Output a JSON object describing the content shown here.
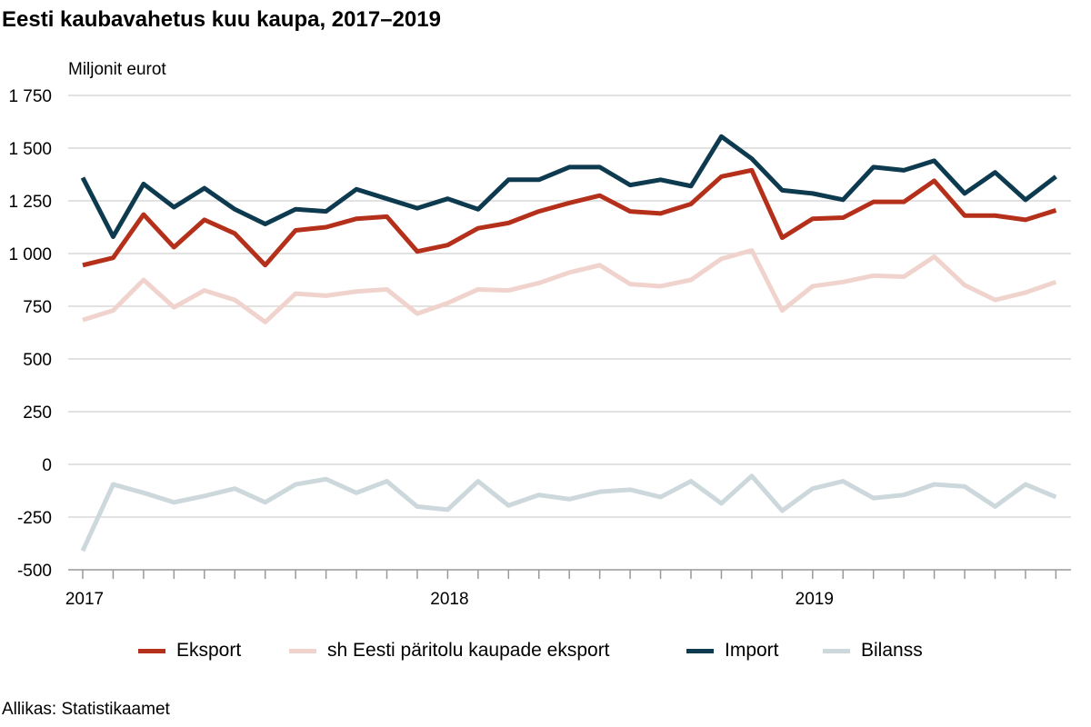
{
  "title": "Eesti kaubavahetus kuu kaupa, 2017–2019",
  "source": "Allikas: Statistikaamet",
  "chart_data": {
    "type": "line",
    "title": "Eesti kaubavahetus kuu kaupa, 2017–2019",
    "ylabel": "Miljonit eurot",
    "ylim": [
      -500,
      1750
    ],
    "yticks": [
      -500,
      -250,
      0,
      250,
      500,
      750,
      1000,
      1250,
      1500,
      1750
    ],
    "ytick_labels": [
      "-500",
      "-250",
      "0",
      "250",
      "500",
      "750",
      "1 000",
      "1 250",
      "1 500",
      "1 750"
    ],
    "x_start": "2017-01",
    "x_end": "2019-09",
    "x_frequency": "monthly",
    "xtick_labels": [
      "2017",
      "2018",
      "2019"
    ],
    "grid": true,
    "legend_position": "bottom",
    "series": [
      {
        "name": "Eksport",
        "color": "#b5301a",
        "values": [
          945,
          980,
          1185,
          1030,
          1160,
          1095,
          945,
          1110,
          1125,
          1165,
          1175,
          1010,
          1040,
          1120,
          1145,
          1200,
          1240,
          1275,
          1200,
          1190,
          1235,
          1365,
          1395,
          1075,
          1165,
          1170,
          1245,
          1245,
          1345,
          1180,
          1180,
          1160,
          1205
        ]
      },
      {
        "name": "sh Eesti päritolu kaupade eksport",
        "color": "#f0d3cd",
        "values": [
          685,
          730,
          875,
          745,
          825,
          780,
          675,
          810,
          800,
          820,
          830,
          715,
          765,
          830,
          825,
          860,
          910,
          945,
          855,
          845,
          875,
          975,
          1015,
          730,
          845,
          865,
          895,
          890,
          985,
          850,
          780,
          815,
          865
        ]
      },
      {
        "name": "Import",
        "color": "#0d3a4f",
        "values": [
          1360,
          1080,
          1330,
          1220,
          1310,
          1210,
          1140,
          1210,
          1200,
          1305,
          1260,
          1215,
          1260,
          1210,
          1350,
          1350,
          1410,
          1410,
          1325,
          1350,
          1320,
          1555,
          1450,
          1300,
          1285,
          1255,
          1410,
          1395,
          1440,
          1285,
          1385,
          1255,
          1365
        ]
      },
      {
        "name": "Bilanss",
        "color": "#cdd8dc",
        "values": [
          -410,
          -95,
          -135,
          -180,
          -150,
          -115,
          -180,
          -95,
          -70,
          -135,
          -80,
          -200,
          -215,
          -80,
          -195,
          -145,
          -165,
          -130,
          -120,
          -155,
          -80,
          -185,
          -55,
          -220,
          -115,
          -80,
          -160,
          -145,
          -95,
          -105,
          -200,
          -95,
          -155
        ]
      }
    ]
  }
}
